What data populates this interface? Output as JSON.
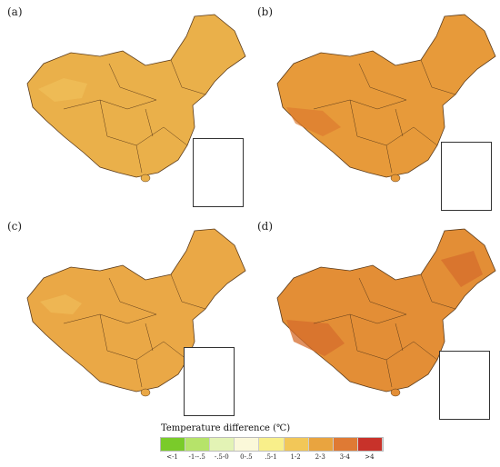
{
  "panels": [
    {
      "label": "(a)",
      "fill": "#eab04a",
      "hot": "#f0c45e"
    },
    {
      "label": "(b)",
      "fill": "#e79a3a",
      "hot": "#dd7a2f"
    },
    {
      "label": "(c)",
      "fill": "#eaa846",
      "hot": "#f0c05c"
    },
    {
      "label": "(d)",
      "fill": "#e38e36",
      "hot": "#d66c2c"
    }
  ],
  "legend": {
    "title": "Temperature difference (℃)",
    "classes": [
      {
        "label": "<-1",
        "color": "#7acb2a"
      },
      {
        "label": "-1--.5",
        "color": "#b6e36a"
      },
      {
        "label": "-.5-0",
        "color": "#e3f3b5"
      },
      {
        "label": "0-.5",
        "color": "#fbf8d9"
      },
      {
        "label": ".5-1",
        "color": "#f8ef8a"
      },
      {
        "label": "1-2",
        "color": "#f2c758"
      },
      {
        "label": "2-3",
        "color": "#e9a43f"
      },
      {
        "label": "3-4",
        "color": "#df7a34"
      },
      {
        "label": ">4",
        "color": "#c8322a"
      }
    ]
  }
}
